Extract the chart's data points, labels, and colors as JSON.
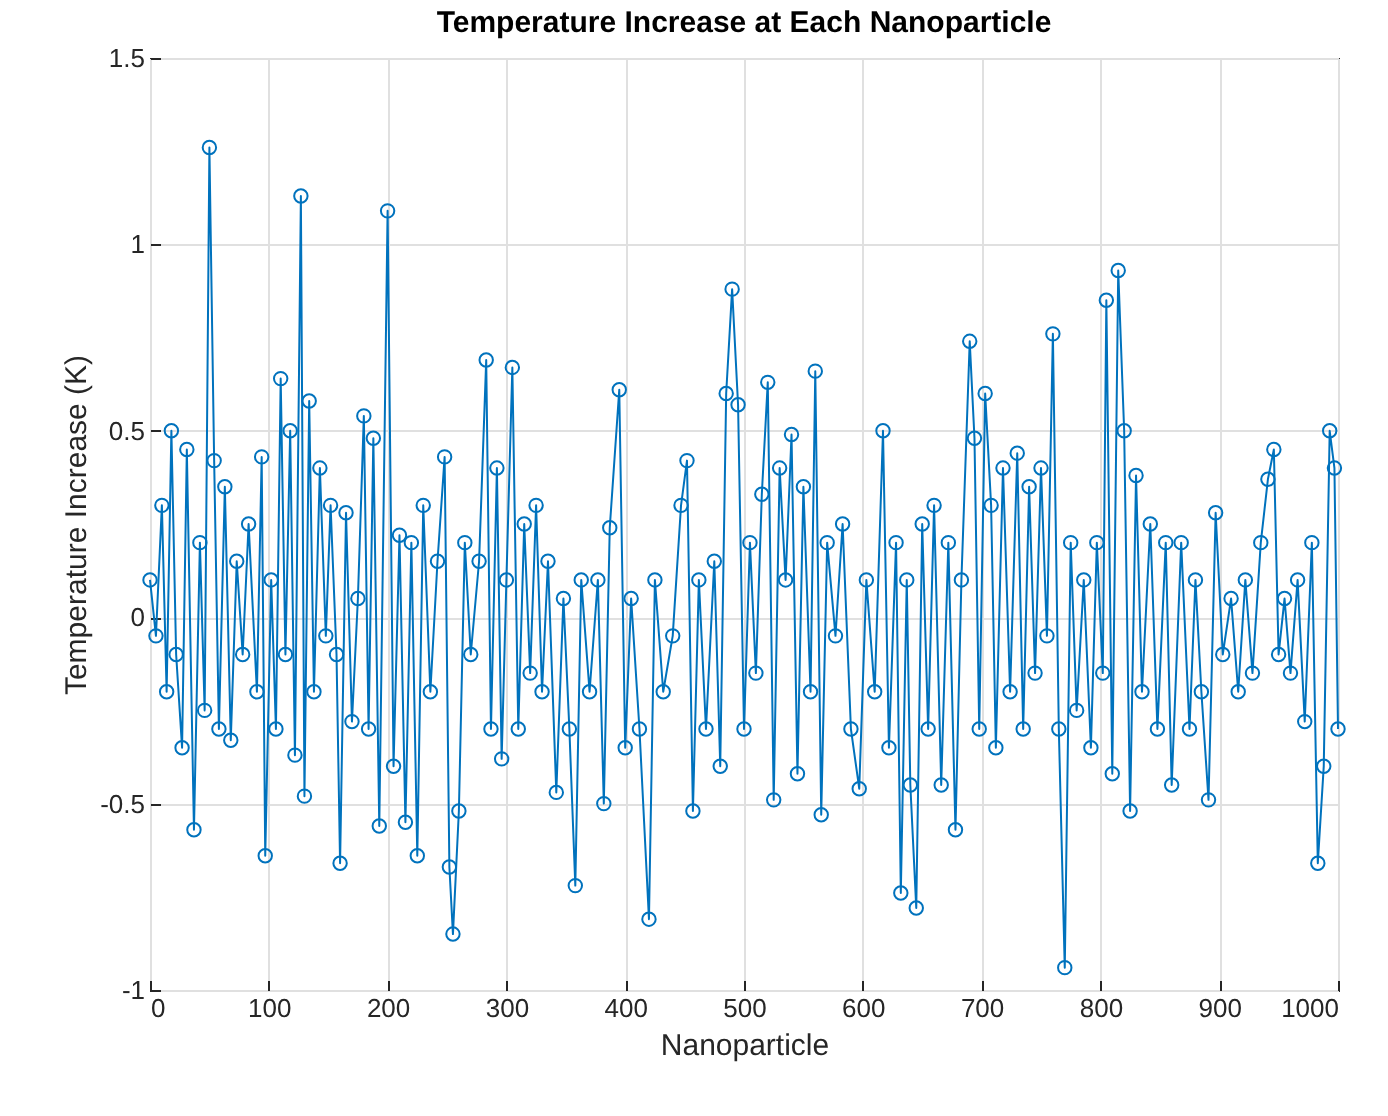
{
  "chart_data": {
    "type": "line",
    "title": "Temperature Increase at Each Nanoparticle",
    "xlabel": "Nanoparticle",
    "ylabel": "Temperature Increase (K)",
    "x": [
      0,
      5,
      10,
      14,
      18,
      22,
      27,
      31,
      37,
      42,
      46,
      50,
      54,
      58,
      63,
      68,
      73,
      78,
      83,
      90,
      94,
      97,
      102,
      106,
      110,
      114,
      118,
      122,
      127,
      130,
      134,
      138,
      143,
      148,
      152,
      157,
      160,
      165,
      170,
      175,
      180,
      184,
      188,
      193,
      200,
      205,
      210,
      215,
      220,
      225,
      230,
      236,
      242,
      248,
      252,
      255,
      260,
      265,
      270,
      277,
      283,
      287,
      292,
      296,
      300,
      305,
      310,
      315,
      320,
      325,
      330,
      335,
      342,
      348,
      353,
      358,
      363,
      370,
      377,
      382,
      387,
      395,
      400,
      405,
      412,
      420,
      425,
      432,
      440,
      447,
      452,
      457,
      462,
      468,
      475,
      480,
      485,
      490,
      495,
      500,
      505,
      510,
      515,
      520,
      525,
      530,
      535,
      540,
      545,
      550,
      556,
      560,
      565,
      570,
      577,
      583,
      590,
      597,
      603,
      610,
      617,
      622,
      628,
      632,
      637,
      640,
      645,
      650,
      655,
      660,
      666,
      672,
      678,
      683,
      690,
      694,
      698,
      703,
      708,
      712,
      718,
      724,
      730,
      735,
      740,
      745,
      750,
      755,
      760,
      765,
      770,
      775,
      780,
      786,
      792,
      797,
      802,
      805,
      810,
      815,
      820,
      825,
      830,
      835,
      842,
      848,
      855,
      860,
      868,
      875,
      880,
      885,
      891,
      897,
      903,
      910,
      916,
      922,
      928,
      935,
      941,
      946,
      950,
      955,
      960,
      966,
      972,
      978,
      983,
      988,
      993,
      997,
      1000
    ],
    "series": [
      {
        "color": "#0072bd",
        "values": [
          0.1,
          -0.05,
          0.3,
          -0.2,
          0.5,
          -0.1,
          -0.35,
          0.45,
          -0.57,
          0.2,
          -0.25,
          1.26,
          0.42,
          -0.3,
          0.35,
          -0.33,
          0.15,
          -0.1,
          0.25,
          -0.2,
          0.43,
          -0.64,
          0.1,
          -0.3,
          0.64,
          -0.1,
          0.5,
          -0.37,
          1.13,
          -0.48,
          0.58,
          -0.2,
          0.4,
          -0.05,
          0.3,
          -0.1,
          -0.66,
          0.28,
          -0.28,
          0.05,
          0.54,
          -0.3,
          0.48,
          -0.56,
          1.09,
          -0.4,
          0.22,
          -0.55,
          0.2,
          -0.64,
          0.3,
          -0.2,
          0.15,
          0.43,
          -0.67,
          -0.85,
          -0.52,
          0.2,
          -0.1,
          0.15,
          0.69,
          -0.3,
          0.4,
          -0.38,
          0.1,
          0.67,
          -0.3,
          0.25,
          -0.15,
          0.3,
          -0.2,
          0.15,
          -0.47,
          0.05,
          -0.3,
          -0.72,
          0.1,
          -0.2,
          0.1,
          -0.5,
          0.24,
          0.61,
          -0.35,
          0.05,
          -0.3,
          -0.81,
          0.1,
          -0.2,
          -0.05,
          0.3,
          0.42,
          -0.52,
          0.1,
          -0.3,
          0.15,
          -0.4,
          0.6,
          0.88,
          0.57,
          -0.3,
          0.2,
          -0.15,
          0.33,
          0.63,
          -0.49,
          0.4,
          0.1,
          0.49,
          -0.42,
          0.35,
          -0.2,
          0.66,
          -0.53,
          0.2,
          -0.05,
          0.25,
          -0.3,
          -0.46,
          0.1,
          -0.2,
          0.5,
          -0.35,
          0.2,
          -0.74,
          0.1,
          -0.45,
          -0.78,
          0.25,
          -0.3,
          0.3,
          -0.45,
          0.2,
          -0.57,
          0.1,
          0.74,
          0.48,
          -0.3,
          0.6,
          0.3,
          -0.35,
          0.4,
          -0.2,
          0.44,
          -0.3,
          0.35,
          -0.15,
          0.4,
          -0.05,
          0.76,
          -0.3,
          -0.94,
          0.2,
          -0.25,
          0.1,
          -0.35,
          0.2,
          -0.15,
          0.85,
          -0.42,
          0.93,
          0.5,
          -0.52,
          0.38,
          -0.2,
          0.25,
          -0.3,
          0.2,
          -0.45,
          0.2,
          -0.3,
          0.1,
          -0.2,
          -0.49,
          0.28,
          -0.1,
          0.05,
          -0.2,
          0.1,
          -0.15,
          0.2,
          0.37,
          0.45,
          -0.1,
          0.05,
          -0.15,
          0.1,
          -0.28,
          0.2,
          -0.66,
          -0.4,
          0.5,
          0.4,
          -0.3
        ]
      }
    ],
    "xlim": [
      0,
      1000
    ],
    "xticks": [
      0,
      100,
      200,
      300,
      400,
      500,
      600,
      700,
      800,
      900,
      1000
    ],
    "ylim": [
      -1,
      1.5
    ],
    "yticks": [
      -1,
      -0.5,
      0,
      0.5,
      1,
      1.5
    ],
    "grid": true,
    "marker": "circle",
    "line_style": "solid"
  }
}
